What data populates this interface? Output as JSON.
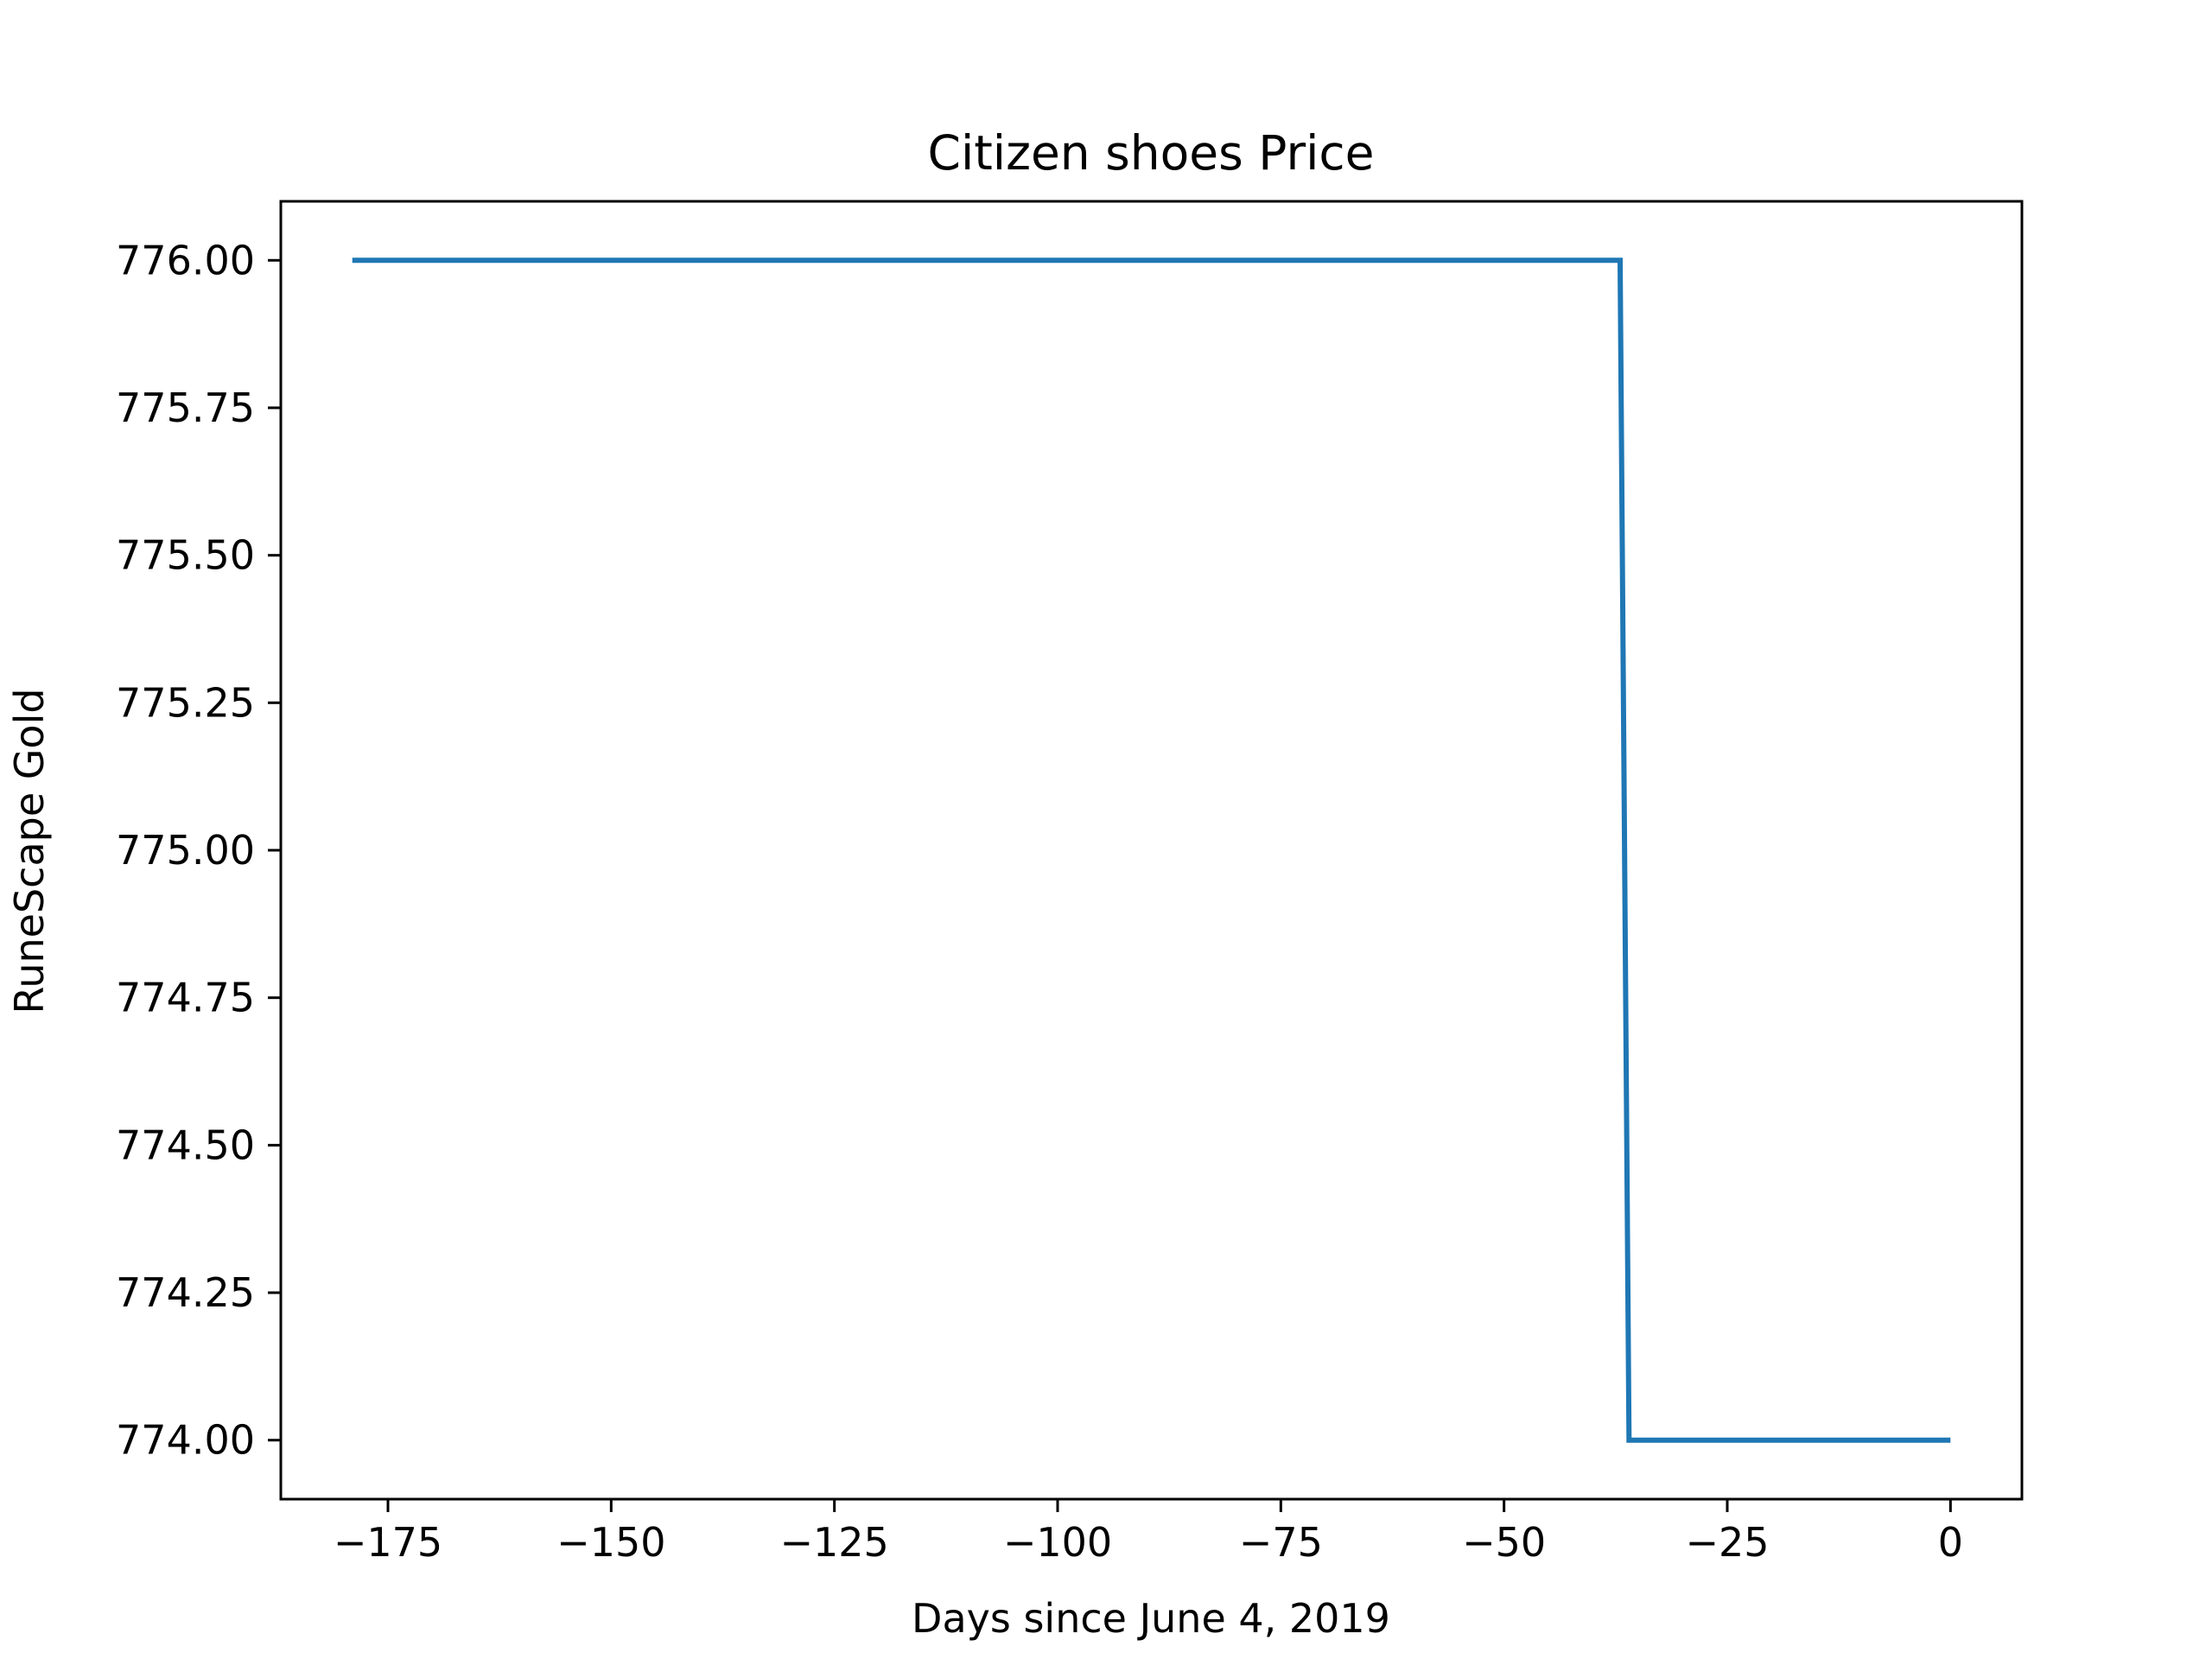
{
  "chart_data": {
    "type": "line",
    "title": "Citizen shoes Price",
    "xlabel": "Days since June 4, 2019",
    "ylabel": "RuneScape Gold",
    "xlim": [
      -187,
      8
    ],
    "ylim": [
      773.9,
      776.1
    ],
    "grid": false,
    "x_ticks": [
      -175,
      -150,
      -125,
      -100,
      -75,
      -50,
      -25,
      0
    ],
    "x_tick_labels": [
      "−175",
      "−150",
      "−125",
      "−100",
      "−75",
      "−50",
      "−25",
      "0"
    ],
    "y_ticks": [
      774.0,
      774.25,
      774.5,
      774.75,
      775.0,
      775.25,
      775.5,
      775.75,
      776.0
    ],
    "y_tick_labels": [
      "774.00",
      "774.25",
      "774.50",
      "774.75",
      "775.00",
      "775.25",
      "775.50",
      "775.75",
      "776.00"
    ],
    "series": [
      {
        "color": "#1f77b4",
        "x": [
          -179,
          -37,
          -36,
          0
        ],
        "y": [
          776,
          776,
          774,
          774
        ]
      }
    ]
  }
}
